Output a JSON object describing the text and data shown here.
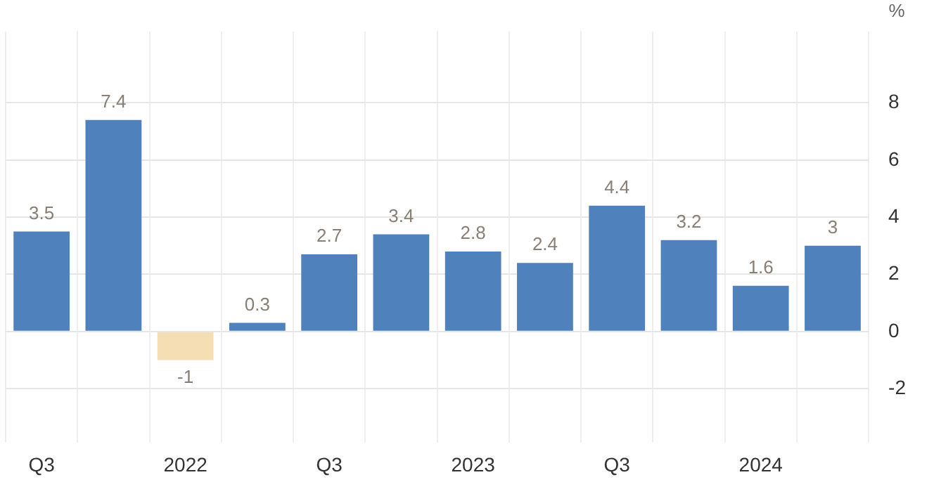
{
  "chart_data": {
    "type": "bar",
    "ylabel": "%",
    "categories": [
      "Q3",
      null,
      "2022",
      null,
      "Q3",
      null,
      "2023",
      null,
      "Q3",
      null,
      "2024",
      null
    ],
    "values": [
      3.5,
      7.4,
      -1,
      0.3,
      2.7,
      3.4,
      2.8,
      2.4,
      4.4,
      3.2,
      1.6,
      3
    ],
    "colors": [
      "#4f81bd",
      "#4f81bd",
      "#f5deb3",
      "#4f81bd",
      "#4f81bd",
      "#4f81bd",
      "#4f81bd",
      "#4f81bd",
      "#4f81bd",
      "#4f81bd",
      "#4f81bd",
      "#4f81bd"
    ],
    "ylim": [
      -3.9,
      10.5
    ],
    "yticks": [
      -2,
      0,
      2,
      4,
      6,
      8
    ],
    "grid": true,
    "data_labels": true
  }
}
